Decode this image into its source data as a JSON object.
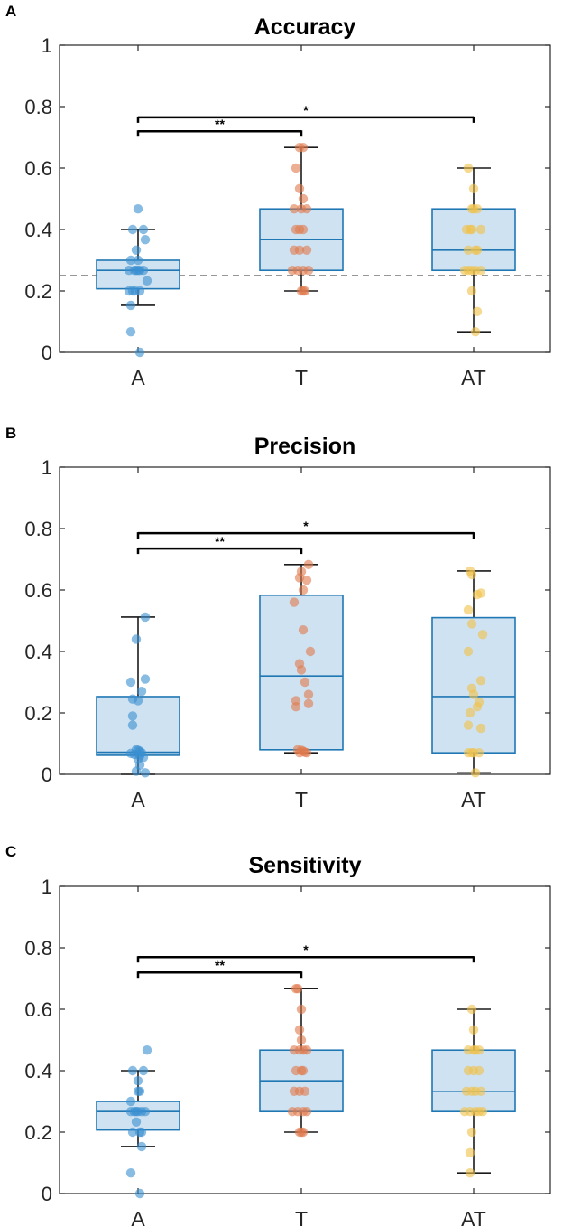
{
  "chart_data": [
    {
      "panel": "A",
      "type": "box",
      "title": "Accuracy",
      "xlabel": "",
      "ylabel": "",
      "ylim": [
        0,
        1
      ],
      "yticks": [
        0,
        0.2,
        0.4,
        0.6,
        0.8,
        1
      ],
      "ytick_labels": [
        "0",
        "0.2",
        "0.4",
        "0.6",
        "0.8",
        "1"
      ],
      "categories": [
        "A",
        "T",
        "AT"
      ],
      "chance_line": 0.25,
      "boxes": [
        {
          "category": "A",
          "q1": 0.207,
          "median": 0.267,
          "q3": 0.3,
          "whisker_low": 0.153,
          "whisker_high": 0.4
        },
        {
          "category": "T",
          "q1": 0.267,
          "median": 0.367,
          "q3": 0.467,
          "whisker_low": 0.2,
          "whisker_high": 0.667
        },
        {
          "category": "AT",
          "q1": 0.267,
          "median": 0.333,
          "q3": 0.467,
          "whisker_low": 0.067,
          "whisker_high": 0.6
        }
      ],
      "points": [
        {
          "category": "A",
          "values": [
            0.467,
            0.4,
            0.4,
            0.367,
            0.333,
            0.3,
            0.3,
            0.267,
            0.267,
            0.267,
            0.267,
            0.267,
            0.267,
            0.233,
            0.2,
            0.2,
            0.2,
            0.2,
            0.153,
            0.067,
            0.0
          ],
          "jitter": [
            0.0,
            -0.15,
            0.15,
            0.2,
            -0.05,
            -0.2,
            0.0,
            -0.25,
            -0.1,
            -0.05,
            0.0,
            0.05,
            0.15,
            0.25,
            -0.25,
            -0.15,
            -0.08,
            0.05,
            -0.2,
            -0.2,
            0.05
          ]
        },
        {
          "category": "T",
          "values": [
            0.667,
            0.667,
            0.6,
            0.533,
            0.5,
            0.467,
            0.467,
            0.467,
            0.4,
            0.4,
            0.4,
            0.333,
            0.333,
            0.333,
            0.267,
            0.267,
            0.267,
            0.267,
            0.2,
            0.2,
            0.2
          ],
          "jitter": [
            -0.05,
            0.05,
            -0.15,
            -0.05,
            0.05,
            -0.2,
            0.0,
            0.15,
            -0.15,
            -0.05,
            0.05,
            -0.2,
            -0.05,
            0.15,
            -0.25,
            -0.1,
            0.05,
            0.2,
            0.0,
            0.05,
            0.1
          ]
        },
        {
          "category": "AT",
          "values": [
            0.6,
            0.533,
            0.467,
            0.467,
            0.467,
            0.4,
            0.4,
            0.4,
            0.4,
            0.333,
            0.333,
            0.333,
            0.267,
            0.267,
            0.267,
            0.267,
            0.267,
            0.2,
            0.133,
            0.067
          ],
          "jitter": [
            -0.15,
            0.0,
            -0.05,
            0.0,
            0.1,
            -0.2,
            -0.1,
            -0.05,
            0.2,
            -0.15,
            0.05,
            0.1,
            -0.25,
            -0.15,
            -0.05,
            0.05,
            0.2,
            -0.05,
            0.1,
            0.05
          ]
        }
      ],
      "significance": [
        {
          "from": "A",
          "to": "T",
          "label": "**",
          "level": 0.72
        },
        {
          "from": "A",
          "to": "AT",
          "label": "*",
          "level": 0.765
        }
      ]
    },
    {
      "panel": "B",
      "type": "box",
      "title": "Precision",
      "xlabel": "",
      "ylabel": "",
      "ylim": [
        0,
        1
      ],
      "yticks": [
        0,
        0.2,
        0.4,
        0.6,
        0.8,
        1
      ],
      "ytick_labels": [
        "0",
        "0.2",
        "0.4",
        "0.6",
        "0.8",
        "1"
      ],
      "categories": [
        "A",
        "T",
        "AT"
      ],
      "chance_line": null,
      "boxes": [
        {
          "category": "A",
          "q1": 0.062,
          "median": 0.072,
          "q3": 0.253,
          "whisker_low": 0.0,
          "whisker_high": 0.512
        },
        {
          "category": "T",
          "q1": 0.08,
          "median": 0.32,
          "q3": 0.583,
          "whisker_low": 0.07,
          "whisker_high": 0.683
        },
        {
          "category": "AT",
          "q1": 0.07,
          "median": 0.253,
          "q3": 0.51,
          "whisker_low": 0.005,
          "whisker_high": 0.662
        }
      ],
      "points": [
        {
          "category": "A",
          "values": [
            0.512,
            0.44,
            0.31,
            0.3,
            0.27,
            0.245,
            0.24,
            0.19,
            0.16,
            0.08,
            0.078,
            0.075,
            0.07,
            0.068,
            0.065,
            0.06,
            0.055,
            0.05,
            0.03,
            0.01,
            0.005
          ],
          "jitter": [
            0.2,
            -0.05,
            0.2,
            -0.2,
            0.1,
            -0.15,
            0.0,
            -0.15,
            -0.15,
            -0.05,
            0.0,
            0.05,
            0.1,
            -0.2,
            -0.1,
            0.05,
            0.15,
            0.0,
            0.05,
            -0.05,
            0.2
          ]
        },
        {
          "category": "T",
          "values": [
            0.683,
            0.66,
            0.64,
            0.632,
            0.6,
            0.56,
            0.47,
            0.4,
            0.36,
            0.34,
            0.3,
            0.26,
            0.24,
            0.23,
            0.22,
            0.08,
            0.078,
            0.075,
            0.072,
            0.07,
            0.07
          ],
          "jitter": [
            0.2,
            0.0,
            -0.05,
            0.15,
            0.05,
            -0.2,
            0.05,
            0.25,
            -0.05,
            0.0,
            0.1,
            0.2,
            -0.15,
            0.2,
            -0.15,
            -0.1,
            0.0,
            0.05,
            0.1,
            0.15,
            -0.05
          ]
        },
        {
          "category": "AT",
          "values": [
            0.662,
            0.65,
            0.59,
            0.585,
            0.535,
            0.49,
            0.455,
            0.4,
            0.305,
            0.28,
            0.26,
            0.235,
            0.22,
            0.2,
            0.16,
            0.15,
            0.07,
            0.07,
            0.07,
            0.07,
            0.005
          ],
          "jitter": [
            -0.1,
            -0.05,
            0.2,
            0.1,
            -0.15,
            -0.05,
            0.25,
            -0.15,
            0.2,
            -0.05,
            0.0,
            0.15,
            0.1,
            -0.1,
            -0.15,
            0.2,
            -0.15,
            -0.05,
            0.0,
            0.15,
            0.05
          ]
        }
      ],
      "significance": [
        {
          "from": "A",
          "to": "T",
          "label": "**",
          "level": 0.735
        },
        {
          "from": "A",
          "to": "AT",
          "label": "*",
          "level": 0.785
        }
      ]
    },
    {
      "panel": "C",
      "type": "box",
      "title": "Sensitivity",
      "xlabel": "",
      "ylabel": "",
      "ylim": [
        0,
        1
      ],
      "yticks": [
        0,
        0.2,
        0.4,
        0.6,
        0.8,
        1
      ],
      "ytick_labels": [
        "0",
        "0.2",
        "0.4",
        "0.6",
        "0.8",
        "1"
      ],
      "categories": [
        "A",
        "T",
        "AT"
      ],
      "chance_line": null,
      "boxes": [
        {
          "category": "A",
          "q1": 0.207,
          "median": 0.267,
          "q3": 0.3,
          "whisker_low": 0.153,
          "whisker_high": 0.4
        },
        {
          "category": "T",
          "q1": 0.267,
          "median": 0.367,
          "q3": 0.467,
          "whisker_low": 0.2,
          "whisker_high": 0.667
        },
        {
          "category": "AT",
          "q1": 0.267,
          "median": 0.333,
          "q3": 0.467,
          "whisker_low": 0.067,
          "whisker_high": 0.6
        }
      ],
      "points": [
        {
          "category": "A",
          "values": [
            0.467,
            0.4,
            0.4,
            0.367,
            0.333,
            0.333,
            0.3,
            0.267,
            0.267,
            0.267,
            0.267,
            0.267,
            0.267,
            0.233,
            0.2,
            0.2,
            0.2,
            0.153,
            0.067,
            0.0
          ],
          "jitter": [
            0.25,
            -0.15,
            0.15,
            0.0,
            0.0,
            0.05,
            -0.2,
            -0.2,
            -0.1,
            -0.05,
            0.0,
            0.1,
            0.2,
            -0.05,
            -0.15,
            0.05,
            0.1,
            0.1,
            -0.2,
            0.05
          ]
        },
        {
          "category": "T",
          "values": [
            0.667,
            0.667,
            0.6,
            0.533,
            0.5,
            0.467,
            0.467,
            0.467,
            0.467,
            0.4,
            0.4,
            0.4,
            0.333,
            0.333,
            0.333,
            0.267,
            0.267,
            0.267,
            0.267,
            0.2,
            0.2,
            0.2
          ],
          "jitter": [
            -0.15,
            -0.1,
            0.0,
            -0.05,
            0.0,
            -0.2,
            -0.05,
            0.05,
            0.15,
            -0.15,
            0.0,
            0.05,
            -0.2,
            -0.05,
            0.1,
            -0.25,
            -0.1,
            0.05,
            0.15,
            -0.05,
            0.0,
            0.05
          ]
        },
        {
          "category": "AT",
          "values": [
            0.6,
            0.533,
            0.467,
            0.467,
            0.467,
            0.467,
            0.4,
            0.4,
            0.4,
            0.333,
            0.333,
            0.333,
            0.333,
            0.267,
            0.267,
            0.267,
            0.267,
            0.267,
            0.2,
            0.133,
            0.067
          ],
          "jitter": [
            -0.05,
            0.0,
            -0.15,
            0.0,
            0.05,
            0.15,
            -0.15,
            0.0,
            0.15,
            -0.2,
            -0.05,
            0.05,
            0.2,
            -0.25,
            -0.1,
            0.05,
            0.15,
            0.25,
            -0.05,
            -0.1,
            -0.1
          ]
        }
      ],
      "significance": [
        {
          "from": "A",
          "to": "T",
          "label": "**",
          "level": 0.72
        },
        {
          "from": "A",
          "to": "AT",
          "label": "*",
          "level": 0.77
        }
      ]
    }
  ],
  "colors": {
    "box_fill": "#cfe2f1",
    "box_stroke": "#1f77b4",
    "whisker": "#1a1a1a",
    "axis": "#262626",
    "chance_line": "#595959",
    "A": "#3a8fd0",
    "T": "#e07a4d",
    "AT": "#f0c24a"
  }
}
